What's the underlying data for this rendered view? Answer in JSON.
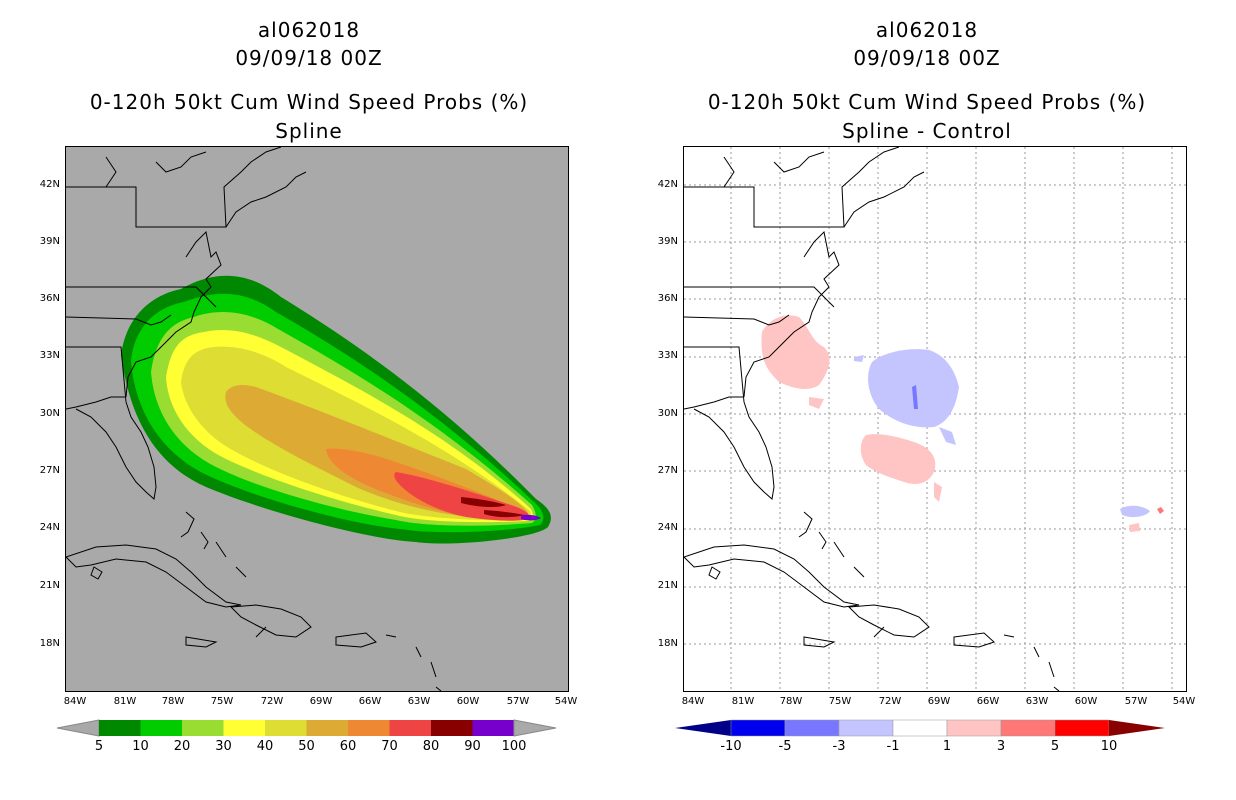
{
  "left": {
    "storm_id": "al062018",
    "datetime": "09/09/18 00Z",
    "title": "0-120h 50kt Cum Wind Speed Probs (%)",
    "subtitle": "Spline",
    "legend": {
      "labels": [
        "5",
        "10",
        "20",
        "30",
        "40",
        "50",
        "60",
        "70",
        "80",
        "90",
        "100"
      ],
      "colors": [
        "#008800",
        "#00cc00",
        "#99dd33",
        "#ffff33",
        "#dddd33",
        "#ddaa33",
        "#ee8833",
        "#ee4444",
        "#880000",
        "#7700cc"
      ]
    }
  },
  "right": {
    "storm_id": "al062018",
    "datetime": "09/09/18 00Z",
    "title": "0-120h 50kt Cum Wind Speed Probs (%)",
    "subtitle": "Spline - Control",
    "legend": {
      "labels": [
        "-10",
        "-5",
        "-3",
        "-1",
        "1",
        "3",
        "5",
        "10"
      ],
      "colors": [
        "#000088",
        "#0000ee",
        "#7777ff",
        "#c4c4ff",
        "#ffffff",
        "#ffc4c4",
        "#ff7777",
        "#ff0000",
        "#880000"
      ]
    }
  },
  "axes": {
    "lat_labels": [
      "42N",
      "39N",
      "36N",
      "33N",
      "30N",
      "27N",
      "24N",
      "21N",
      "18N"
    ],
    "lon_labels": [
      "84W",
      "81W",
      "78W",
      "75W",
      "72W",
      "69W",
      "66W",
      "63W",
      "60W",
      "57W",
      "54W"
    ]
  }
}
